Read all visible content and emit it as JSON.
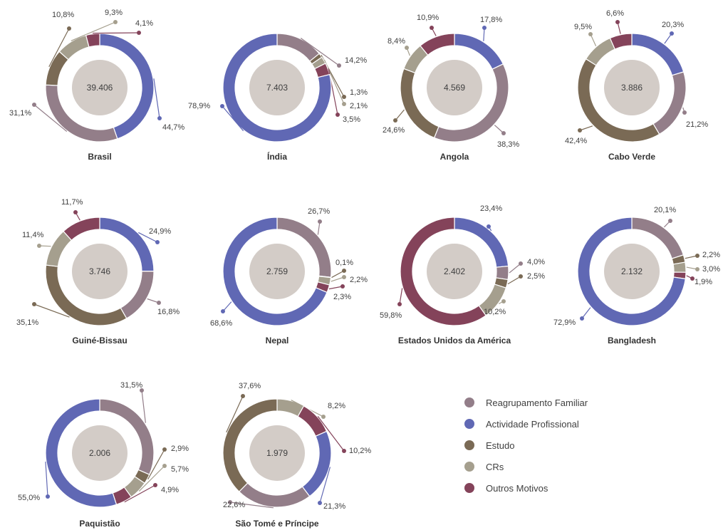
{
  "chart_data": {
    "type": "pie",
    "legend_position": "right",
    "legend": [
      {
        "key": "reagrupamento",
        "label": "Reagrupamento Familiar",
        "color": "#937e89"
      },
      {
        "key": "actividade",
        "label": "Actividade Profissional",
        "color": "#6068b4"
      },
      {
        "key": "estudo",
        "label": "Estudo",
        "color": "#7a6a55"
      },
      {
        "key": "crs",
        "label": "CRs",
        "color": "#a59f8e"
      },
      {
        "key": "outros",
        "label": "Outros Motivos",
        "color": "#84435a"
      }
    ],
    "charts": [
      {
        "country": "Brasil",
        "total": "39.406",
        "values": {
          "actividade": 44.7,
          "reagrupamento": 31.1,
          "estudo": 10.8,
          "crs": 9.3,
          "outros": 4.1
        },
        "labels": {
          "actividade": "44,7%",
          "reagrupamento": "31,1%",
          "estudo": "10,8%",
          "crs": "9,3%",
          "outros": "4,1%"
        }
      },
      {
        "country": "Índia",
        "total": "7.403",
        "values": {
          "actividade": 78.9,
          "reagrupamento": 14.2,
          "estudo": 1.3,
          "crs": 2.1,
          "outros": 3.5
        },
        "labels": {
          "actividade": "78,9%",
          "reagrupamento": "14,2%",
          "estudo": "1,3%",
          "crs": "2,1%",
          "outros": "3,5%"
        }
      },
      {
        "country": "Angola",
        "total": "4.569",
        "values": {
          "actividade": 17.8,
          "reagrupamento": 38.3,
          "estudo": 24.6,
          "crs": 8.4,
          "outros": 10.9
        },
        "labels": {
          "actividade": "17,8%",
          "reagrupamento": "38,3%",
          "estudo": "24,6%",
          "crs": "8,4%",
          "outros": "10,9%"
        }
      },
      {
        "country": "Cabo Verde",
        "total": "3.886",
        "values": {
          "actividade": 20.3,
          "reagrupamento": 21.2,
          "estudo": 42.4,
          "crs": 9.5,
          "outros": 6.6
        },
        "labels": {
          "actividade": "20,3%",
          "reagrupamento": "21,2%",
          "estudo": "42,4%",
          "crs": "9,5%",
          "outros": "6,6%"
        }
      },
      {
        "country": "Guiné-Bissau",
        "total": "3.746",
        "values": {
          "actividade": 24.9,
          "reagrupamento": 16.8,
          "estudo": 35.1,
          "crs": 11.4,
          "outros": 11.7
        },
        "labels": {
          "actividade": "24,9%",
          "reagrupamento": "16,8%",
          "estudo": "35,1%",
          "crs": "11,4%",
          "outros": "11,7%"
        }
      },
      {
        "country": "Nepal",
        "total": "2.759",
        "values": {
          "reagrupamento": 26.7,
          "estudo": 0.1,
          "crs": 2.2,
          "outros": 2.3,
          "actividade": 68.6
        },
        "labels": {
          "reagrupamento": "26,7%",
          "estudo": "0,1%",
          "crs": "2,2%",
          "outros": "2,3%",
          "actividade": "68,6%"
        }
      },
      {
        "country": "Estados Unidos da América",
        "total": "2.402",
        "values": {
          "actividade": 23.4,
          "reagrupamento": 4.0,
          "estudo": 2.5,
          "crs": 10.2,
          "outros": 59.8
        },
        "labels": {
          "actividade": "23,4%",
          "reagrupamento": "4,0%",
          "estudo": "2,5%",
          "crs": "10,2%",
          "outros": "59,8%"
        }
      },
      {
        "country": "Bangladesh",
        "total": "2.132",
        "values": {
          "reagrupamento": 20.1,
          "estudo": 2.2,
          "crs": 3.0,
          "outros": 1.9,
          "actividade": 72.9
        },
        "labels": {
          "reagrupamento": "20,1%",
          "estudo": "2,2%",
          "crs": "3,0%",
          "outros": "1,9%",
          "actividade": "72,9%"
        }
      },
      {
        "country": "Paquistão",
        "total": "2.006",
        "values": {
          "reagrupamento": 31.5,
          "estudo": 2.9,
          "crs": 5.7,
          "outros": 4.9,
          "actividade": 55.0
        },
        "labels": {
          "reagrupamento": "31,5%",
          "estudo": "2,9%",
          "crs": "5,7%",
          "outros": "4,9%",
          "actividade": "55,0%"
        }
      },
      {
        "country": "São Tomé e Príncipe",
        "total": "1.979",
        "values": {
          "crs": 8.2,
          "outros": 10.2,
          "actividade": 21.3,
          "reagrupamento": 22.6,
          "estudo": 37.6
        },
        "labels": {
          "crs": "8,2%",
          "outros": "10,2%",
          "actividade": "21,3%",
          "reagrupamento": "22,6%",
          "estudo": "37,6%"
        }
      }
    ]
  }
}
